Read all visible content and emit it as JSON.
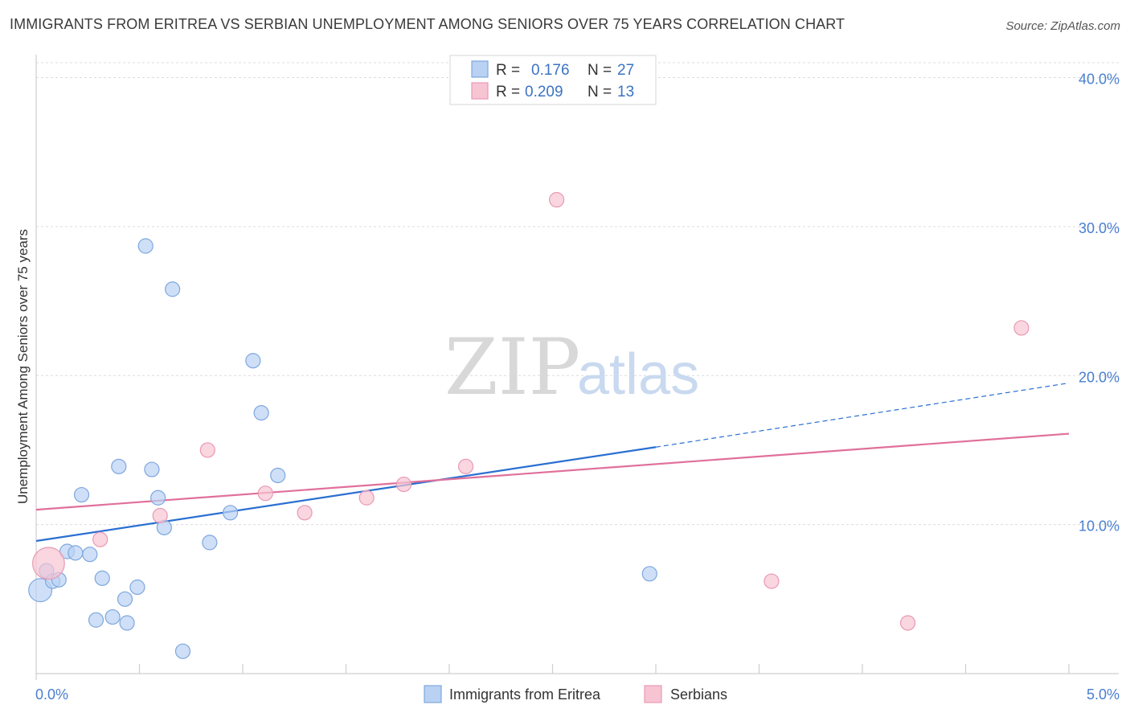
{
  "header": {
    "title": "IMMIGRANTS FROM ERITREA VS SERBIAN UNEMPLOYMENT AMONG SENIORS OVER 75 YEARS CORRELATION CHART",
    "source": "Source: ZipAtlas.com"
  },
  "watermark": {
    "zip": "ZIP",
    "atlas": "atlas"
  },
  "legend": {
    "r_label": "R =",
    "n_label": "N =",
    "rows": [
      {
        "r": "0.176",
        "n": "27"
      },
      {
        "r": "0.209",
        "n": "13"
      }
    ]
  },
  "colors": {
    "eritrea_fill": "#b9d1f3",
    "eritrea_stroke": "#7ea7de",
    "eritrea_line": "#2a6fd1",
    "serbian_fill": "#f7c4d3",
    "serbian_stroke": "#e999b3",
    "serbian_line": "#e0709a",
    "tick_text": "#4a7fd0",
    "grid": "#dcdcdc"
  },
  "chart_data": {
    "type": "scatter",
    "title": "IMMIGRANTS FROM ERITREA VS SERBIAN UNEMPLOYMENT AMONG SENIORS OVER 75 YEARS CORRELATION CHART",
    "xlabel": "",
    "ylabel": "Unemployment Among Seniors over 75 years",
    "xlim": [
      0,
      5
    ],
    "ylim": [
      0,
      41
    ],
    "x_tick_labels": [
      "0.0%",
      "5.0%"
    ],
    "y_ticks": [
      10,
      20,
      30,
      40
    ],
    "y_tick_labels": [
      "10.0%",
      "20.0%",
      "30.0%",
      "40.0%"
    ],
    "grid": true,
    "legend_position": "top-center",
    "series": [
      {
        "name": "Immigrants from Eritrea",
        "r": 0.176,
        "n": 27,
        "points": [
          {
            "x": 0.02,
            "y": 5.6,
            "size": 1.6
          },
          {
            "x": 0.05,
            "y": 6.9,
            "size": 1.0
          },
          {
            "x": 0.08,
            "y": 6.2,
            "size": 1.0
          },
          {
            "x": 0.11,
            "y": 6.3,
            "size": 1.0
          },
          {
            "x": 0.15,
            "y": 8.2,
            "size": 1.0
          },
          {
            "x": 0.19,
            "y": 8.1,
            "size": 1.0
          },
          {
            "x": 0.22,
            "y": 12.0,
            "size": 1.0
          },
          {
            "x": 0.26,
            "y": 8.0,
            "size": 1.0
          },
          {
            "x": 0.29,
            "y": 3.6,
            "size": 1.0
          },
          {
            "x": 0.32,
            "y": 6.4,
            "size": 1.0
          },
          {
            "x": 0.37,
            "y": 3.8,
            "size": 1.0
          },
          {
            "x": 0.4,
            "y": 13.9,
            "size": 1.0
          },
          {
            "x": 0.43,
            "y": 5.0,
            "size": 1.0
          },
          {
            "x": 0.44,
            "y": 3.4,
            "size": 1.0
          },
          {
            "x": 0.49,
            "y": 5.8,
            "size": 1.0
          },
          {
            "x": 0.53,
            "y": 28.7,
            "size": 1.0
          },
          {
            "x": 0.56,
            "y": 13.7,
            "size": 1.0
          },
          {
            "x": 0.59,
            "y": 11.8,
            "size": 1.0
          },
          {
            "x": 0.62,
            "y": 9.8,
            "size": 1.0
          },
          {
            "x": 0.66,
            "y": 25.8,
            "size": 1.0
          },
          {
            "x": 0.71,
            "y": 1.5,
            "size": 1.0
          },
          {
            "x": 0.84,
            "y": 8.8,
            "size": 1.0
          },
          {
            "x": 0.94,
            "y": 10.8,
            "size": 1.0
          },
          {
            "x": 1.05,
            "y": 21.0,
            "size": 1.0
          },
          {
            "x": 1.09,
            "y": 17.5,
            "size": 1.0
          },
          {
            "x": 1.17,
            "y": 13.3,
            "size": 1.0
          },
          {
            "x": 2.97,
            "y": 6.7,
            "size": 1.0
          }
        ],
        "trend": {
          "x0": 0,
          "y0": 8.9,
          "x1": 3.0,
          "y1": 15.2,
          "dashed_to_x": 5,
          "dashed_to_y": 19.5
        }
      },
      {
        "name": "Serbians",
        "r": 0.209,
        "n": 13,
        "points": [
          {
            "x": 0.06,
            "y": 7.4,
            "size": 2.2
          },
          {
            "x": 0.31,
            "y": 9.0,
            "size": 1.0
          },
          {
            "x": 0.6,
            "y": 10.6,
            "size": 1.0
          },
          {
            "x": 0.83,
            "y": 15.0,
            "size": 1.0
          },
          {
            "x": 1.11,
            "y": 12.1,
            "size": 1.0
          },
          {
            "x": 1.3,
            "y": 10.8,
            "size": 1.0
          },
          {
            "x": 1.6,
            "y": 11.8,
            "size": 1.0
          },
          {
            "x": 1.78,
            "y": 12.7,
            "size": 1.0
          },
          {
            "x": 2.08,
            "y": 13.9,
            "size": 1.0
          },
          {
            "x": 2.52,
            "y": 31.8,
            "size": 1.0
          },
          {
            "x": 3.56,
            "y": 6.2,
            "size": 1.0
          },
          {
            "x": 4.22,
            "y": 3.4,
            "size": 1.0
          },
          {
            "x": 4.77,
            "y": 23.2,
            "size": 1.0
          }
        ],
        "trend": {
          "x0": 0,
          "y0": 11.0,
          "x1": 5,
          "y1": 16.1
        }
      }
    ]
  }
}
